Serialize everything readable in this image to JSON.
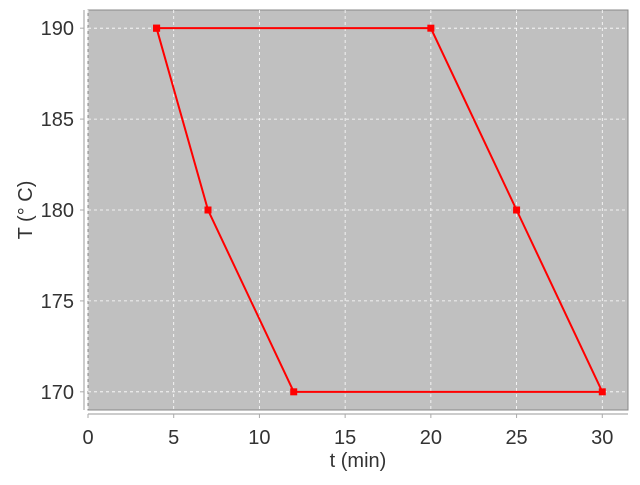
{
  "chart_data": {
    "type": "line",
    "title": "",
    "xlabel": "t (min)",
    "ylabel": "T (° C)",
    "xlim": [
      0,
      31.5
    ],
    "ylim": [
      169,
      191
    ],
    "xticks": [
      0,
      5,
      10,
      15,
      20,
      25,
      30
    ],
    "yticks": [
      170,
      175,
      180,
      185,
      190
    ],
    "grid": true,
    "background_color": "#c0c0c0",
    "series": [
      {
        "color": "#ff0000",
        "marker": "square",
        "x": [
          4,
          20,
          25,
          30,
          12,
          7,
          4
        ],
        "y": [
          190,
          190,
          180,
          170,
          170,
          180,
          190
        ]
      }
    ]
  }
}
